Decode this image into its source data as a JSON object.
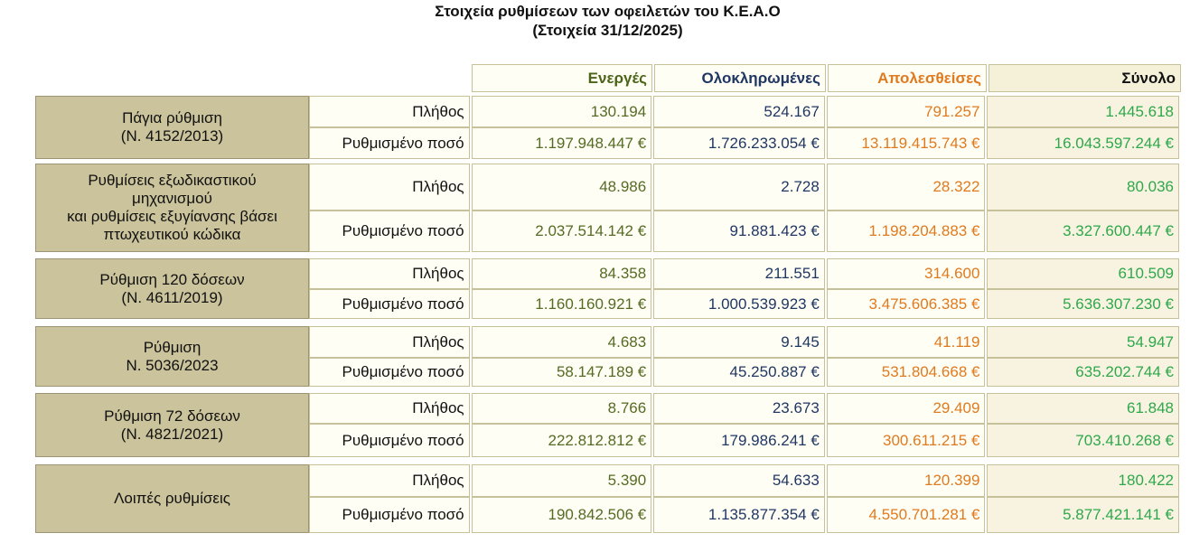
{
  "title": {
    "line1": "Στοιχεία ρυθμίσεων των οφειλετών του Κ.Ε.Α.Ο",
    "line2": "(Στοιχεία 31/12/2025)"
  },
  "columns": {
    "active": "Ενεργές",
    "completed": "Ολοκληρωμένες",
    "lost": "Απολεσθείσες",
    "total": "Σύνολο"
  },
  "metrics": {
    "count": "Πλήθος",
    "amount": "Ρυθμισμένο ποσό"
  },
  "groups": [
    {
      "label_lines": [
        "Πάγια ρύθμιση",
        "(Ν. 4152/2013)"
      ],
      "count": {
        "active": "130.194",
        "completed": "524.167",
        "lost": "791.257",
        "total": "1.445.618"
      },
      "amount": {
        "active": "1.197.948.447 €",
        "completed": "1.726.233.054 €",
        "lost": "13.119.415.743 €",
        "total": "16.043.597.244 €"
      }
    },
    {
      "label_lines": [
        "Ρυθμίσεις εξωδικαστικού",
        "μηχανισμού",
        "και ρυθμίσεις εξυγίανσης βάσει",
        "πτωχευτικού κώδικα"
      ],
      "count": {
        "active": "48.986",
        "completed": "2.728",
        "lost": "28.322",
        "total": "80.036"
      },
      "amount": {
        "active": "2.037.514.142 €",
        "completed": "91.881.423 €",
        "lost": "1.198.204.883 €",
        "total": "3.327.600.447 €"
      }
    },
    {
      "label_lines": [
        "Ρύθμιση 120 δόσεων",
        "(Ν. 4611/2019)"
      ],
      "count": {
        "active": "84.358",
        "completed": "211.551",
        "lost": "314.600",
        "total": "610.509"
      },
      "amount": {
        "active": "1.160.160.921 €",
        "completed": "1.000.539.923 €",
        "lost": "3.475.606.385 €",
        "total": "5.636.307.230 €"
      }
    },
    {
      "label_lines": [
        "Ρύθμιση",
        "Ν. 5036/2023"
      ],
      "count": {
        "active": "4.683",
        "completed": "9.145",
        "lost": "41.119",
        "total": "54.947"
      },
      "amount": {
        "active": "58.147.189 €",
        "completed": "45.250.887 €",
        "lost": "531.804.668 €",
        "total": "635.202.744 €"
      }
    },
    {
      "label_lines": [
        "Ρύθμιση 72 δόσεων",
        "(Ν. 4821/2021)"
      ],
      "count": {
        "active": "8.766",
        "completed": "23.673",
        "lost": "29.409",
        "total": "61.848"
      },
      "amount": {
        "active": "222.812.812 €",
        "completed": "179.986.241 €",
        "lost": "300.611.215 €",
        "total": "703.410.268 €"
      }
    },
    {
      "label_lines": [
        "Λοιπές ρυθμίσεις"
      ],
      "count": {
        "active": "5.390",
        "completed": "54.633",
        "lost": "120.399",
        "total": "180.422"
      },
      "amount": {
        "active": "190.842.506 €",
        "completed": "1.135.877.354 €",
        "lost": "4.550.701.281 €",
        "total": "5.877.421.141 €"
      }
    }
  ]
}
